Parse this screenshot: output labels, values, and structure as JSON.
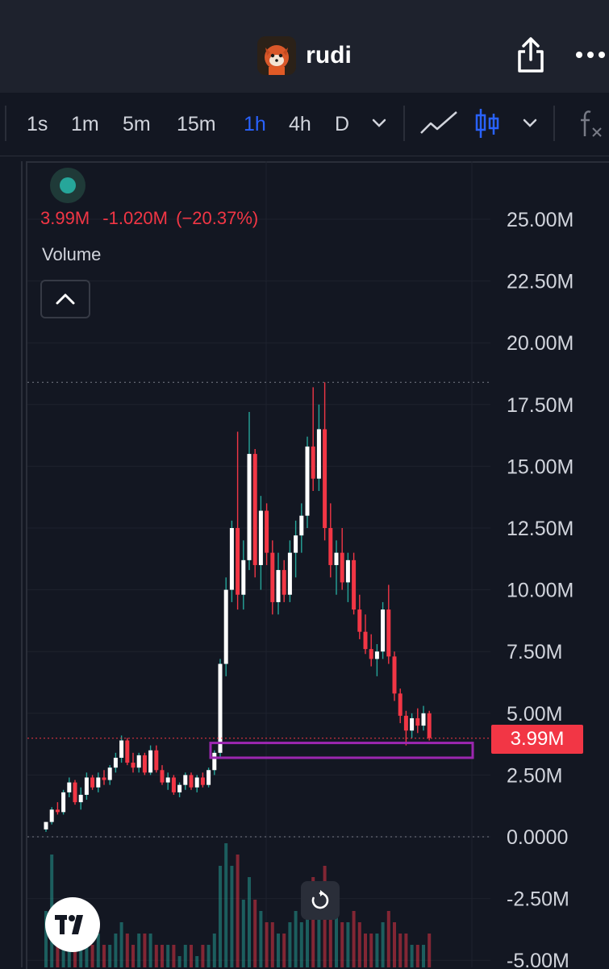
{
  "header": {
    "title": "rudi",
    "avatar_icon": "red-panda-avatar-icon",
    "share_icon": "share-icon",
    "more_icon": "more-dots-icon"
  },
  "toolbar": {
    "intervals": [
      "1s",
      "1m",
      "5m",
      "15m",
      "1h",
      "4h",
      "D"
    ],
    "active_interval": "1h",
    "chart_type_icons": [
      "line-chart-icon",
      "candlestick-icon"
    ],
    "indicator_icon": "fx-icon"
  },
  "legend": {
    "last": "3.99M",
    "change": "-1.020M",
    "change_pct": "(−20.37%)",
    "volume_label": "Volume",
    "colors": {
      "up": "#26a69a",
      "down": "#f23645",
      "accent": "#2962ff",
      "highlight": "#9c27b0"
    }
  },
  "price_axis": {
    "labels": [
      "25.00M",
      "22.50M",
      "20.00M",
      "17.50M",
      "15.00M",
      "12.50M",
      "10.00M",
      "7.50M",
      "5.00M",
      "2.50M",
      "0.0000",
      "-2.50M",
      "-5.00M"
    ],
    "last_price_label": "3.99M"
  },
  "chart_data": {
    "type": "candlestick",
    "symbol": "rudi",
    "interval": "1h",
    "ylim": [
      -5000000,
      26000000
    ],
    "y_ticks": [
      25000000,
      22500000,
      20000000,
      17500000,
      15000000,
      12500000,
      10000000,
      7500000,
      5000000,
      2500000,
      0,
      -2500000,
      -5000000
    ],
    "last_price": 3990000,
    "session_high": 18400000,
    "zero_line": 0,
    "highlight_zone": {
      "low": 3200000,
      "high": 3800000,
      "color": "#9c27b0"
    },
    "candles": [
      [
        0.3,
        0.6,
        0.2,
        0.6
      ],
      [
        0.6,
        1.2,
        0.5,
        1.1
      ],
      [
        1.1,
        1.4,
        0.9,
        1.0
      ],
      [
        1.0,
        1.9,
        0.9,
        1.8
      ],
      [
        1.8,
        2.4,
        1.6,
        2.2
      ],
      [
        2.2,
        2.3,
        1.3,
        1.4
      ],
      [
        1.4,
        2.0,
        1.1,
        1.7
      ],
      [
        1.7,
        2.6,
        1.5,
        2.4
      ],
      [
        2.4,
        2.5,
        1.9,
        2.0
      ],
      [
        2.0,
        2.6,
        1.8,
        2.4
      ],
      [
        2.4,
        2.7,
        2.1,
        2.3
      ],
      [
        2.3,
        2.9,
        2.1,
        2.8
      ],
      [
        2.8,
        3.4,
        2.6,
        3.2
      ],
      [
        3.2,
        4.1,
        3.0,
        3.9
      ],
      [
        3.9,
        4.0,
        2.9,
        3.0
      ],
      [
        3.0,
        3.4,
        2.6,
        2.8
      ],
      [
        2.8,
        3.4,
        2.6,
        3.3
      ],
      [
        3.3,
        3.4,
        2.5,
        2.6
      ],
      [
        2.6,
        3.7,
        2.5,
        3.5
      ],
      [
        3.5,
        3.7,
        2.6,
        2.7
      ],
      [
        2.7,
        2.9,
        2.1,
        2.2
      ],
      [
        2.2,
        2.6,
        1.9,
        2.4
      ],
      [
        2.4,
        2.5,
        1.7,
        1.8
      ],
      [
        1.8,
        2.2,
        1.6,
        2.1
      ],
      [
        2.1,
        2.6,
        1.9,
        2.5
      ],
      [
        2.5,
        2.6,
        1.9,
        2.0
      ],
      [
        2.0,
        2.5,
        1.8,
        2.4
      ],
      [
        2.4,
        2.6,
        2.0,
        2.1
      ],
      [
        2.1,
        2.8,
        2.0,
        2.7
      ],
      [
        2.7,
        3.5,
        2.5,
        3.4
      ],
      [
        3.4,
        7.2,
        3.2,
        7.0
      ],
      [
        7.0,
        10.5,
        6.5,
        10.0
      ],
      [
        10.0,
        12.8,
        9.5,
        12.5
      ],
      [
        12.5,
        16.4,
        9.2,
        9.8
      ],
      [
        9.8,
        12.0,
        9.2,
        11.2
      ],
      [
        11.2,
        17.2,
        10.8,
        15.5
      ],
      [
        15.5,
        15.7,
        10.5,
        11.0
      ],
      [
        11.0,
        13.8,
        10.0,
        13.2
      ],
      [
        13.2,
        13.5,
        11.0,
        11.5
      ],
      [
        11.5,
        12.0,
        9.0,
        9.5
      ],
      [
        9.5,
        11.5,
        9.0,
        10.8
      ],
      [
        10.8,
        11.2,
        9.5,
        9.8
      ],
      [
        9.8,
        12.0,
        9.5,
        11.5
      ],
      [
        11.5,
        12.8,
        10.5,
        12.2
      ],
      [
        12.2,
        13.5,
        11.5,
        13.0
      ],
      [
        13.0,
        16.2,
        12.5,
        15.8
      ],
      [
        15.8,
        18.2,
        14.0,
        14.5
      ],
      [
        14.5,
        17.5,
        14.0,
        16.5
      ],
      [
        16.5,
        18.4,
        12.0,
        12.5
      ],
      [
        12.5,
        13.5,
        10.5,
        11.0
      ],
      [
        11.0,
        12.0,
        9.8,
        11.5
      ],
      [
        11.5,
        12.5,
        10.0,
        10.3
      ],
      [
        10.3,
        11.5,
        9.5,
        11.2
      ],
      [
        11.2,
        11.5,
        9.0,
        9.2
      ],
      [
        9.2,
        9.8,
        8.0,
        8.3
      ],
      [
        8.3,
        9.0,
        7.4,
        7.6
      ],
      [
        7.6,
        8.2,
        6.9,
        7.2
      ],
      [
        7.2,
        7.8,
        6.5,
        7.5
      ],
      [
        7.5,
        9.5,
        7.2,
        9.2
      ],
      [
        9.2,
        10.2,
        7.0,
        7.3
      ],
      [
        7.3,
        7.5,
        5.5,
        5.8
      ],
      [
        5.8,
        6.0,
        4.6,
        4.9
      ],
      [
        4.9,
        5.1,
        3.7,
        4.3
      ],
      [
        4.3,
        5.0,
        4.0,
        4.8
      ],
      [
        4.8,
        5.2,
        4.2,
        4.5
      ],
      [
        4.5,
        5.3,
        4.3,
        5.0
      ],
      [
        5.0,
        5.1,
        3.9,
        4.0
      ]
    ],
    "candle_units": "millions, [open, high, low, close]",
    "volume_units": "relative",
    "volumes": [
      0.5,
      1.0,
      0.4,
      0.3,
      0.2,
      0.3,
      0.2,
      0.2,
      0.2,
      0.3,
      0.2,
      0.2,
      0.3,
      0.4,
      0.3,
      0.2,
      0.3,
      0.3,
      0.3,
      0.2,
      0.2,
      0.2,
      0.2,
      0.1,
      0.2,
      0.2,
      0.1,
      0.2,
      0.2,
      0.3,
      0.9,
      1.1,
      0.9,
      1.0,
      0.6,
      0.8,
      0.6,
      0.5,
      0.4,
      0.4,
      0.3,
      0.3,
      0.4,
      0.5,
      0.4,
      0.6,
      0.8,
      0.7,
      0.9,
      0.6,
      0.5,
      0.4,
      0.4,
      0.5,
      0.4,
      0.3,
      0.3,
      0.3,
      0.4,
      0.5,
      0.4,
      0.3,
      0.3,
      0.2,
      0.2,
      0.2,
      0.3
    ]
  },
  "footer": {
    "reset_icon": "reset-chart-icon",
    "brand_icon": "tradingview-logo-icon"
  }
}
